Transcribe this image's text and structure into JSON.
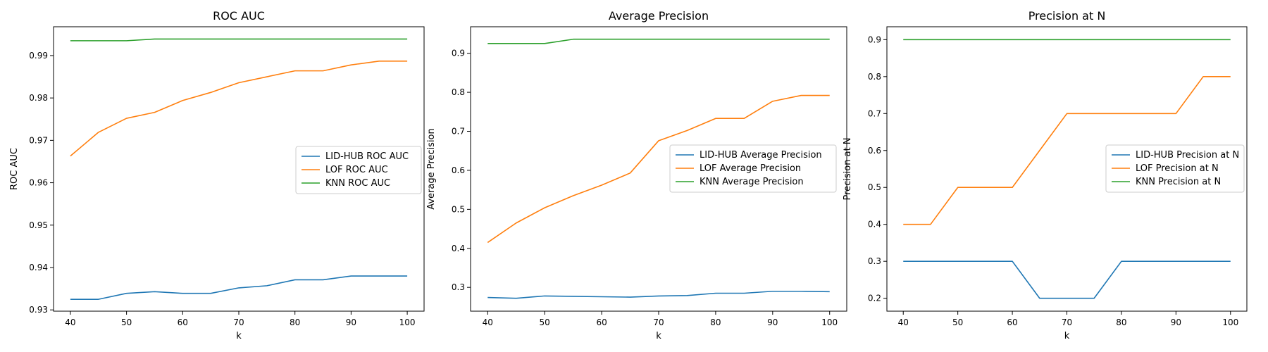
{
  "colors": {
    "lid_hub": "#1f77b4",
    "lof": "#ff7f0e",
    "knn": "#2ca02c"
  },
  "chart_data": [
    {
      "type": "line",
      "title": "ROC AUC",
      "xlabel": "k",
      "ylabel": "ROC AUC",
      "x": [
        40,
        45,
        50,
        55,
        60,
        65,
        70,
        75,
        80,
        85,
        90,
        95,
        100
      ],
      "xticks": [
        40,
        50,
        60,
        70,
        80,
        90,
        100
      ],
      "xlim": [
        37,
        103
      ],
      "yticks": [
        0.93,
        0.94,
        0.95,
        0.96,
        0.97,
        0.98,
        0.99
      ],
      "ytick_labels": [
        "0.93",
        "0.94",
        "0.95",
        "0.96",
        "0.97",
        "0.98",
        "0.99"
      ],
      "ylim": [
        0.9297,
        0.9968
      ],
      "legend_position": "center-right",
      "series": [
        {
          "name": "LID-HUB ROC AUC",
          "color_key": "lid_hub",
          "values": [
            0.9325,
            0.9325,
            0.9339,
            0.9343,
            0.9339,
            0.9339,
            0.9352,
            0.9357,
            0.9371,
            0.9371,
            0.938,
            0.938,
            0.938
          ]
        },
        {
          "name": "LOF ROC AUC",
          "color_key": "lof",
          "values": [
            0.9663,
            0.9719,
            0.9752,
            0.9766,
            0.9794,
            0.9813,
            0.9836,
            0.985,
            0.9864,
            0.9864,
            0.9878,
            0.9887,
            0.9887
          ]
        },
        {
          "name": "KNN ROC AUC",
          "color_key": "knn",
          "values": [
            0.9935,
            0.9935,
            0.9935,
            0.9939,
            0.9939,
            0.9939,
            0.9939,
            0.9939,
            0.9939,
            0.9939,
            0.9939,
            0.9939,
            0.9939
          ]
        }
      ]
    },
    {
      "type": "line",
      "title": "Average Precision",
      "xlabel": "k",
      "ylabel": "Average Precision",
      "x": [
        40,
        45,
        50,
        55,
        60,
        65,
        70,
        75,
        80,
        85,
        90,
        95,
        100
      ],
      "xticks": [
        40,
        50,
        60,
        70,
        80,
        90,
        100
      ],
      "xlim": [
        37,
        103
      ],
      "yticks": [
        0.3,
        0.4,
        0.5,
        0.6,
        0.7,
        0.8,
        0.9
      ],
      "ytick_labels": [
        "0.3",
        "0.4",
        "0.5",
        "0.6",
        "0.7",
        "0.8",
        "0.9"
      ],
      "ylim": [
        0.239,
        0.968
      ],
      "legend_position": "center-right",
      "series": [
        {
          "name": "LID-HUB Average Precision",
          "color_key": "lid_hub",
          "values": [
            0.274,
            0.272,
            0.278,
            0.277,
            0.276,
            0.275,
            0.278,
            0.279,
            0.285,
            0.285,
            0.29,
            0.29,
            0.289
          ]
        },
        {
          "name": "LOF Average Precision",
          "color_key": "lof",
          "values": [
            0.415,
            0.465,
            0.504,
            0.535,
            0.562,
            0.593,
            0.676,
            0.702,
            0.733,
            0.733,
            0.777,
            0.792,
            0.792
          ]
        },
        {
          "name": "KNN Average Precision",
          "color_key": "knn",
          "values": [
            0.925,
            0.925,
            0.925,
            0.936,
            0.936,
            0.936,
            0.936,
            0.936,
            0.936,
            0.936,
            0.936,
            0.936,
            0.936
          ]
        }
      ]
    },
    {
      "type": "line",
      "title": "Precision at N",
      "xlabel": "k",
      "ylabel": "Precision at N",
      "x": [
        40,
        45,
        50,
        55,
        60,
        65,
        70,
        75,
        80,
        85,
        90,
        95,
        100
      ],
      "xticks": [
        40,
        50,
        60,
        70,
        80,
        90,
        100
      ],
      "xlim": [
        37,
        103
      ],
      "yticks": [
        0.2,
        0.3,
        0.4,
        0.5,
        0.6,
        0.7,
        0.8,
        0.9
      ],
      "ytick_labels": [
        "0.2",
        "0.3",
        "0.4",
        "0.5",
        "0.6",
        "0.7",
        "0.8",
        "0.9"
      ],
      "ylim": [
        0.165,
        0.935
      ],
      "legend_position": "center-right",
      "series": [
        {
          "name": "LID-HUB Precision at N",
          "color_key": "lid_hub",
          "values": [
            0.3,
            0.3,
            0.3,
            0.3,
            0.3,
            0.2,
            0.2,
            0.2,
            0.3,
            0.3,
            0.3,
            0.3,
            0.3
          ]
        },
        {
          "name": "LOF Precision at N",
          "color_key": "lof",
          "values": [
            0.4,
            0.4,
            0.5,
            0.5,
            0.5,
            0.6,
            0.7,
            0.7,
            0.7,
            0.7,
            0.7,
            0.8,
            0.8
          ]
        },
        {
          "name": "KNN Precision at N",
          "color_key": "knn",
          "values": [
            0.9,
            0.9,
            0.9,
            0.9,
            0.9,
            0.9,
            0.9,
            0.9,
            0.9,
            0.9,
            0.9,
            0.9,
            0.9
          ]
        }
      ]
    }
  ]
}
